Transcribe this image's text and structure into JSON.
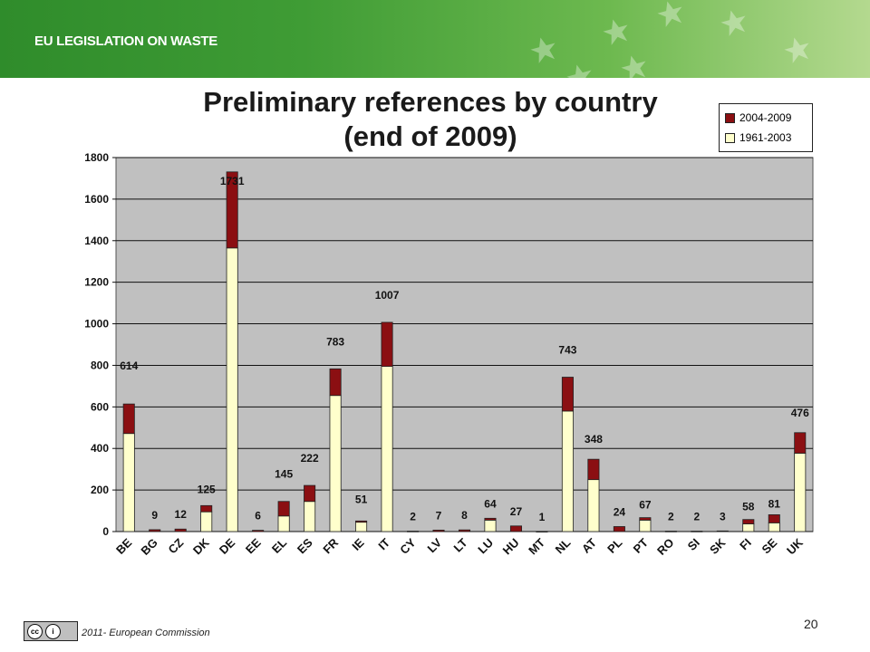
{
  "header": {
    "title": "EU LEGISLATION ON WASTE"
  },
  "chart_title": [
    "Preliminary references by country",
    "(end of 2009)"
  ],
  "legend": {
    "items": [
      "2004-2009",
      "1961-2003"
    ]
  },
  "footer": {
    "copyright": "2011- European Commission",
    "page_number": "20"
  },
  "colors": {
    "recent": "#8b0f12",
    "early": "#ffffcc",
    "plot_bg": "#c0c0c0",
    "banner": "#3f9c35"
  },
  "chart_data": {
    "type": "bar",
    "stacked": true,
    "categories": [
      "BE",
      "BG",
      "CZ",
      "DK",
      "DE",
      "EE",
      "EL",
      "ES",
      "FR",
      "IE",
      "IT",
      "CY",
      "LV",
      "LT",
      "LU",
      "HU",
      "MT",
      "NL",
      "AT",
      "PL",
      "PT",
      "RO",
      "SI",
      "SK",
      "FI",
      "SE",
      "UK"
    ],
    "series": [
      {
        "name": "1961-2003",
        "values": [
          472,
          0,
          0,
          95,
          1365,
          0,
          75,
          145,
          655,
          45,
          795,
          0,
          0,
          0,
          55,
          0,
          0,
          580,
          250,
          0,
          55,
          0,
          0,
          0,
          37,
          42,
          377
        ]
      },
      {
        "name": "2004-2009",
        "values": [
          142,
          9,
          12,
          30,
          366,
          6,
          70,
          77,
          128,
          6,
          212,
          2,
          7,
          8,
          9,
          27,
          1,
          163,
          98,
          24,
          12,
          2,
          2,
          3,
          21,
          39,
          99
        ]
      }
    ],
    "totals": [
      614,
      9,
      12,
      125,
      1731,
      6,
      145,
      222,
      783,
      51,
      1007,
      2,
      7,
      8,
      64,
      27,
      1,
      743,
      348,
      24,
      67,
      2,
      2,
      3,
      58,
      81,
      476
    ],
    "ylim": [
      0,
      1800
    ],
    "yticks": [
      0,
      200,
      400,
      600,
      800,
      1000,
      1200,
      1400,
      1600,
      1800
    ],
    "grid": true,
    "legend_position": "top-right"
  }
}
